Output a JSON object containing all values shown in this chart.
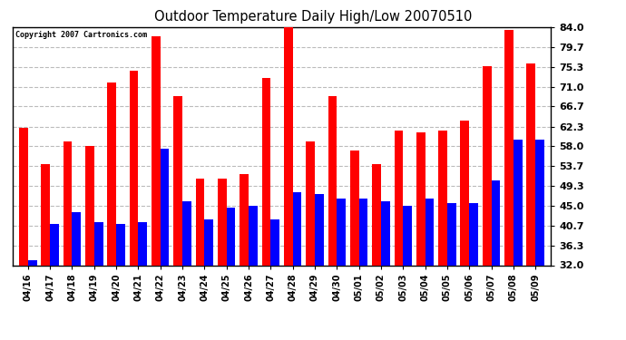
{
  "title": "Outdoor Temperature Daily High/Low 20070510",
  "copyright": "Copyright 2007 Cartronics.com",
  "categories": [
    "04/16",
    "04/17",
    "04/18",
    "04/19",
    "04/20",
    "04/21",
    "04/22",
    "04/23",
    "04/24",
    "04/25",
    "04/26",
    "04/27",
    "04/28",
    "04/29",
    "04/30",
    "05/01",
    "05/02",
    "05/03",
    "05/04",
    "05/05",
    "05/06",
    "05/07",
    "05/08",
    "05/09"
  ],
  "highs": [
    62.0,
    54.0,
    59.0,
    58.0,
    72.0,
    74.5,
    82.0,
    69.0,
    51.0,
    51.0,
    52.0,
    73.0,
    85.0,
    59.0,
    69.0,
    57.0,
    54.0,
    61.5,
    61.0,
    61.5,
    63.5,
    75.5,
    83.5,
    76.0
  ],
  "lows": [
    33.0,
    41.0,
    43.5,
    41.5,
    41.0,
    41.5,
    57.5,
    46.0,
    42.0,
    44.5,
    45.0,
    42.0,
    48.0,
    47.5,
    46.5,
    46.5,
    46.0,
    45.0,
    46.5,
    45.5,
    45.5,
    50.5,
    59.5,
    59.5
  ],
  "high_color": "#ff0000",
  "low_color": "#0000ff",
  "bg_color": "#ffffff",
  "plot_bg_color": "#ffffff",
  "grid_color": "#bbbbbb",
  "ytick_values": [
    32.0,
    36.3,
    40.7,
    45.0,
    49.3,
    53.7,
    58.0,
    62.3,
    66.7,
    71.0,
    75.3,
    79.7,
    84.0
  ],
  "ytick_labels": [
    "32.0",
    "36.3",
    "40.7",
    "45.0",
    "49.3",
    "53.7",
    "58.0",
    "62.3",
    "66.7",
    "71.0",
    "75.3",
    "79.7",
    "84.0"
  ],
  "ymin": 32.0,
  "ymax": 84.0,
  "bar_width": 0.4
}
